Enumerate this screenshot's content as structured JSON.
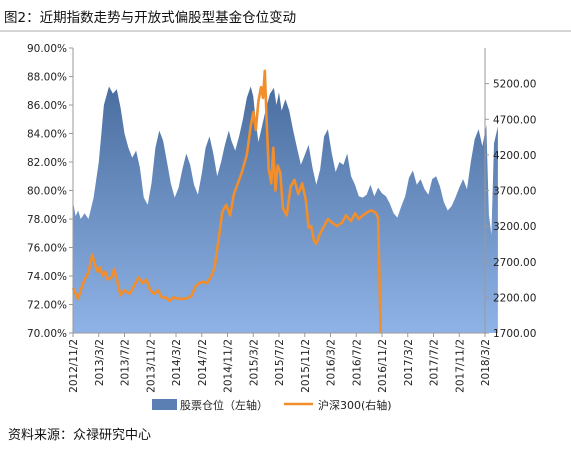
{
  "figure": {
    "title": "图2：近期指数走势与开放式偏股型基金仓位变动",
    "source": "资料来源：众禄研究中心"
  },
  "chart_data": {
    "type": "area",
    "title": "图2：近期指数走势与开放式偏股型基金仓位变动",
    "grid": false,
    "legend_position": "bottom",
    "x_categories": [
      "2012/11/2",
      "2013/3/2",
      "2013/7/2",
      "2013/11/2",
      "2014/3/2",
      "2014/7/2",
      "2014/11/2",
      "2015/3/2",
      "2015/7/2",
      "2015/11/2",
      "2016/3/2",
      "2016/7/2",
      "2016/11/2",
      "2017/3/2",
      "2017/7/2",
      "2017/11/2",
      "2018/3/2"
    ],
    "y_left": {
      "range": [
        70,
        90
      ],
      "ticks": [
        "70.00%",
        "72.00%",
        "74.00%",
        "76.00%",
        "78.00%",
        "80.00%",
        "82.00%",
        "84.00%",
        "86.00%",
        "88.00%",
        "90.00%"
      ]
    },
    "y_right": {
      "range": [
        1700,
        5700
      ],
      "ticks": [
        "1700.00",
        "2200.00",
        "2700.00",
        "3200.00",
        "3700.00",
        "4200.00",
        "4700.00",
        "5200.00"
      ]
    },
    "series": [
      {
        "name": "股票仓位（左轴）",
        "axis": "left",
        "kind": "area",
        "color": "#4f75a8",
        "points": [
          [
            0.0,
            79.2
          ],
          [
            0.1,
            78.2
          ],
          [
            0.2,
            78.6
          ],
          [
            0.3,
            78.0
          ],
          [
            0.45,
            78.4
          ],
          [
            0.6,
            78.0
          ],
          [
            0.8,
            79.5
          ],
          [
            1.0,
            82.0
          ],
          [
            1.2,
            86.0
          ],
          [
            1.4,
            87.3
          ],
          [
            1.55,
            86.8
          ],
          [
            1.7,
            87.1
          ],
          [
            1.85,
            85.8
          ],
          [
            2.0,
            84.0
          ],
          [
            2.15,
            83.0
          ],
          [
            2.3,
            82.3
          ],
          [
            2.45,
            82.8
          ],
          [
            2.6,
            81.6
          ],
          [
            2.75,
            79.5
          ],
          [
            2.9,
            79.0
          ],
          [
            3.05,
            80.5
          ],
          [
            3.2,
            83.0
          ],
          [
            3.35,
            84.2
          ],
          [
            3.5,
            83.5
          ],
          [
            3.65,
            82.0
          ],
          [
            3.8,
            80.5
          ],
          [
            3.95,
            79.5
          ],
          [
            4.1,
            80.2
          ],
          [
            4.25,
            81.5
          ],
          [
            4.4,
            82.6
          ],
          [
            4.55,
            81.8
          ],
          [
            4.7,
            80.4
          ],
          [
            4.85,
            79.7
          ],
          [
            5.0,
            81.2
          ],
          [
            5.15,
            83.0
          ],
          [
            5.3,
            83.8
          ],
          [
            5.45,
            82.6
          ],
          [
            5.6,
            81.0
          ],
          [
            5.75,
            82.0
          ],
          [
            5.9,
            83.2
          ],
          [
            6.05,
            84.2
          ],
          [
            6.15,
            83.5
          ],
          [
            6.3,
            82.8
          ],
          [
            6.45,
            83.8
          ],
          [
            6.6,
            85.0
          ],
          [
            6.75,
            86.5
          ],
          [
            6.9,
            87.3
          ],
          [
            7.0,
            86.6
          ],
          [
            7.1,
            84.8
          ],
          [
            7.2,
            83.4
          ],
          [
            7.35,
            84.6
          ],
          [
            7.5,
            85.8
          ],
          [
            7.65,
            86.8
          ],
          [
            7.8,
            87.2
          ],
          [
            7.9,
            86.0
          ],
          [
            8.0,
            86.9
          ],
          [
            8.1,
            85.6
          ],
          [
            8.25,
            86.4
          ],
          [
            8.4,
            85.6
          ],
          [
            8.55,
            84.2
          ],
          [
            8.7,
            83.0
          ],
          [
            8.85,
            81.8
          ],
          [
            9.0,
            82.5
          ],
          [
            9.15,
            83.2
          ],
          [
            9.3,
            81.6
          ],
          [
            9.45,
            80.4
          ],
          [
            9.6,
            81.5
          ],
          [
            9.75,
            83.8
          ],
          [
            9.9,
            84.3
          ],
          [
            10.05,
            82.6
          ],
          [
            10.2,
            81.3
          ],
          [
            10.35,
            82.0
          ],
          [
            10.5,
            81.8
          ],
          [
            10.65,
            82.6
          ],
          [
            10.8,
            81.0
          ],
          [
            10.95,
            80.4
          ],
          [
            11.1,
            79.6
          ],
          [
            11.25,
            79.5
          ],
          [
            11.4,
            79.7
          ],
          [
            11.55,
            80.4
          ],
          [
            11.7,
            79.6
          ],
          [
            11.85,
            80.2
          ],
          [
            12.0,
            79.8
          ],
          [
            12.15,
            79.6
          ],
          [
            12.3,
            79.1
          ],
          [
            12.45,
            78.4
          ],
          [
            12.6,
            78.1
          ],
          [
            12.75,
            78.9
          ],
          [
            12.9,
            79.6
          ],
          [
            13.05,
            80.9
          ],
          [
            13.2,
            81.4
          ],
          [
            13.35,
            80.4
          ],
          [
            13.5,
            80.8
          ],
          [
            13.65,
            80.1
          ],
          [
            13.8,
            79.7
          ],
          [
            13.95,
            80.8
          ],
          [
            14.1,
            81.0
          ],
          [
            14.25,
            80.3
          ],
          [
            14.4,
            79.2
          ],
          [
            14.55,
            78.6
          ],
          [
            14.7,
            78.9
          ],
          [
            14.85,
            79.5
          ],
          [
            15.0,
            80.2
          ],
          [
            15.15,
            80.8
          ],
          [
            15.3,
            80.1
          ],
          [
            15.45,
            82.0
          ],
          [
            15.6,
            83.6
          ],
          [
            15.75,
            84.3
          ],
          [
            15.9,
            83.1
          ],
          [
            16.05,
            84.6
          ],
          [
            16.15,
            78.3
          ],
          [
            16.25,
            76.9
          ],
          [
            16.35,
            83.3
          ],
          [
            16.5,
            84.5
          ]
        ]
      },
      {
        "name": "沪深300(右轴)",
        "axis": "right",
        "kind": "line",
        "color": "#f28e2b",
        "points": [
          [
            0.0,
            2330
          ],
          [
            0.1,
            2250
          ],
          [
            0.2,
            2180
          ],
          [
            0.3,
            2300
          ],
          [
            0.45,
            2450
          ],
          [
            0.6,
            2550
          ],
          [
            0.75,
            2800
          ],
          [
            0.85,
            2660
          ],
          [
            0.95,
            2560
          ],
          [
            1.05,
            2620
          ],
          [
            1.15,
            2500
          ],
          [
            1.25,
            2560
          ],
          [
            1.35,
            2450
          ],
          [
            1.5,
            2480
          ],
          [
            1.6,
            2600
          ],
          [
            1.7,
            2450
          ],
          [
            1.85,
            2230
          ],
          [
            2.0,
            2300
          ],
          [
            2.2,
            2250
          ],
          [
            2.4,
            2380
          ],
          [
            2.55,
            2480
          ],
          [
            2.7,
            2400
          ],
          [
            2.85,
            2450
          ],
          [
            3.0,
            2300
          ],
          [
            3.15,
            2250
          ],
          [
            3.3,
            2300
          ],
          [
            3.45,
            2200
          ],
          [
            3.6,
            2200
          ],
          [
            3.75,
            2150
          ],
          [
            3.9,
            2200
          ],
          [
            4.1,
            2180
          ],
          [
            4.3,
            2180
          ],
          [
            4.45,
            2190
          ],
          [
            4.6,
            2220
          ],
          [
            4.75,
            2350
          ],
          [
            4.9,
            2400
          ],
          [
            5.05,
            2420
          ],
          [
            5.2,
            2400
          ],
          [
            5.35,
            2480
          ],
          [
            5.5,
            2620
          ],
          [
            5.65,
            3000
          ],
          [
            5.8,
            3400
          ],
          [
            5.95,
            3500
          ],
          [
            6.1,
            3350
          ],
          [
            6.25,
            3650
          ],
          [
            6.4,
            3800
          ],
          [
            6.55,
            3950
          ],
          [
            6.75,
            4200
          ],
          [
            6.9,
            4600
          ],
          [
            7.0,
            4800
          ],
          [
            7.1,
            4550
          ],
          [
            7.2,
            4950
          ],
          [
            7.3,
            5150
          ],
          [
            7.38,
            5000
          ],
          [
            7.45,
            5380
          ],
          [
            7.52,
            4700
          ],
          [
            7.6,
            4000
          ],
          [
            7.7,
            3800
          ],
          [
            7.78,
            4300
          ],
          [
            7.86,
            3700
          ],
          [
            7.95,
            4050
          ],
          [
            8.05,
            3950
          ],
          [
            8.15,
            3450
          ],
          [
            8.3,
            3350
          ],
          [
            8.45,
            3750
          ],
          [
            8.6,
            3850
          ],
          [
            8.75,
            3650
          ],
          [
            8.9,
            3800
          ],
          [
            9.05,
            3550
          ],
          [
            9.15,
            3180
          ],
          [
            9.25,
            3200
          ],
          [
            9.35,
            3000
          ],
          [
            9.45,
            2950
          ],
          [
            9.6,
            3100
          ],
          [
            9.75,
            3200
          ],
          [
            9.9,
            3300
          ],
          [
            10.05,
            3250
          ],
          [
            10.25,
            3200
          ],
          [
            10.45,
            3250
          ],
          [
            10.6,
            3350
          ],
          [
            10.8,
            3270
          ],
          [
            10.95,
            3380
          ],
          [
            11.1,
            3300
          ],
          [
            11.25,
            3350
          ],
          [
            11.45,
            3400
          ],
          [
            11.6,
            3420
          ],
          [
            11.75,
            3390
          ],
          [
            11.85,
            3320
          ],
          [
            11.95,
            1700
          ]
        ]
      }
    ]
  }
}
